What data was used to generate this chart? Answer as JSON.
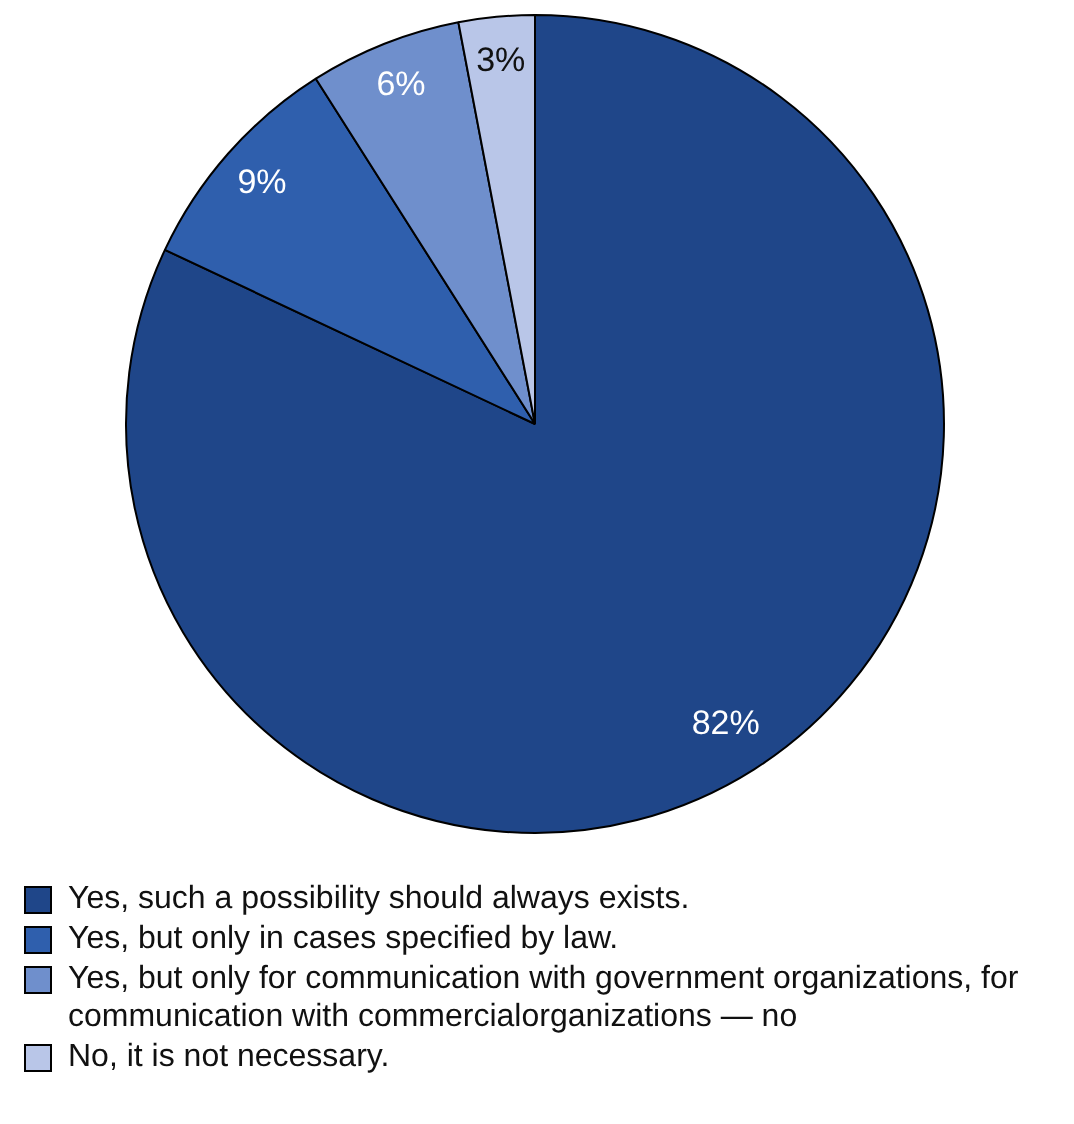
{
  "chart_data": {
    "type": "pie",
    "categories": [
      "Yes, such a possibility should always exists.",
      "Yes, but only in cases specified by law.",
      "Yes, but only for communication with government organizations, for communication with commercialorganizations — no",
      "No, it is not necessary."
    ],
    "values": [
      82,
      9,
      6,
      3
    ],
    "colors": [
      "#1f4689",
      "#2f5fad",
      "#6f8fcc",
      "#b9c6e8"
    ],
    "value_labels": [
      "82%",
      "9%",
      "6%",
      "3%"
    ],
    "legend": "bottom"
  }
}
